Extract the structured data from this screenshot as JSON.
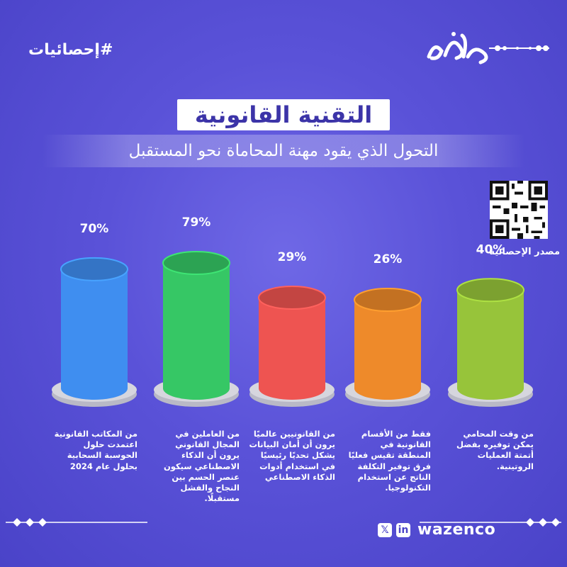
{
  "header": {
    "hashtag": "#إحصائيات"
  },
  "title": "التقنية القانونية",
  "subtitle": "التحول الذي يقود مهنة المحاماة نحو المستقبل",
  "source": {
    "label": "مصدر الإحصائية"
  },
  "footer": {
    "brand": "wazenco",
    "x_icon": "𝕏",
    "in_icon": "in"
  },
  "colors": {
    "background": "#5a52d8",
    "title_text": "#3c34a8",
    "bar_blue": "#3f8ef0",
    "bar_green": "#36c765",
    "bar_red": "#ee5451",
    "bar_orange": "#ee8a2a",
    "bar_olive": "#97c43a",
    "base_gray": "#d6d6de"
  },
  "chart_data": {
    "type": "bar",
    "values": [
      70,
      79,
      29,
      26,
      40
    ],
    "labels": [
      "70%",
      "79%",
      "29%",
      "26%",
      "40%"
    ],
    "categories": [
      "من المكاتب القانونية اعتمدت حلول الحوسبة السحابية بحلول عام 2024",
      "من العاملين في المجال القانوني يرون أن الذكاء الاصطناعي سيكون عنصر الحسم بين النجاح والفشل مستقبلًا.",
      "من القانونيين عالميًا يرون أن أمان البيانات يشكل تحديًا رئيسيًا في استخدام أدوات الذكاء الاصطناعي",
      "فقط من الأقسام القانونية في المنطقة تقيس فعليًا فرق توفير التكلفة الناتج عن استخدام التكنولوجيا.",
      "من وقت المحامي يمكن توفيره بفضل أتمتة العمليات الروتينية."
    ],
    "colors": [
      "#3f8ef0",
      "#36c765",
      "#ee5451",
      "#ee8a2a",
      "#97c43a"
    ],
    "title": "التقنية القانونية",
    "subtitle": "التحول الذي يقود مهنة المحاماة نحو المستقبل",
    "ylim": [
      0,
      100
    ],
    "grid": false,
    "legend": "none"
  }
}
